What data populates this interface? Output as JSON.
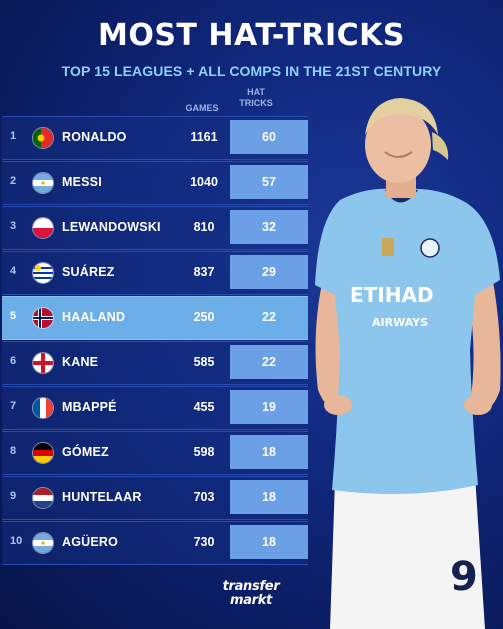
{
  "title": "MOST HAT-TRICKS",
  "subtitle": "TOP 15 LEAGUES + ALL COMPS IN THE 21ST CENTURY",
  "columns": {
    "games": "GAMES",
    "hat_tricks_line1": "HAT",
    "hat_tricks_line2": "TRICKS"
  },
  "rows": [
    {
      "rank": "1",
      "flag": "portugal-flag",
      "name": "RONALDO",
      "games": "1161",
      "hat_tricks": "60"
    },
    {
      "rank": "2",
      "flag": "argentina-flag",
      "name": "MESSI",
      "games": "1040",
      "hat_tricks": "57"
    },
    {
      "rank": "3",
      "flag": "poland-flag",
      "name": "LEWANDOWSKI",
      "games": "810",
      "hat_tricks": "32"
    },
    {
      "rank": "4",
      "flag": "uruguay-flag",
      "name": "SUÁREZ",
      "games": "837",
      "hat_tricks": "29"
    },
    {
      "rank": "5",
      "flag": "norway-flag",
      "name": "HAALAND",
      "games": "250",
      "hat_tricks": "22",
      "highlighted": true
    },
    {
      "rank": "6",
      "flag": "england-flag",
      "name": "KANE",
      "games": "585",
      "hat_tricks": "22"
    },
    {
      "rank": "7",
      "flag": "france-flag",
      "name": "MBAPPÉ",
      "games": "455",
      "hat_tricks": "19"
    },
    {
      "rank": "8",
      "flag": "germany-flag",
      "name": "GÓMEZ",
      "games": "598",
      "hat_tricks": "18"
    },
    {
      "rank": "9",
      "flag": "netherlands-flag",
      "name": "HUNTELAAR",
      "games": "703",
      "hat_tricks": "18"
    },
    {
      "rank": "10",
      "flag": "argentina-flag",
      "name": "AGÜERO",
      "games": "730",
      "hat_tricks": "18"
    }
  ],
  "player": {
    "shirt_sponsor": "ETIHAD",
    "shirt_sponsor_sub": "AIRWAYS",
    "shirt_number": "9"
  },
  "logo": {
    "line1": "transfer",
    "line2": "markt"
  },
  "colors": {
    "background": "#112a82",
    "accent": "#6b9fe6",
    "highlight": "#6caee8",
    "subtitle": "#8fd0f7"
  }
}
